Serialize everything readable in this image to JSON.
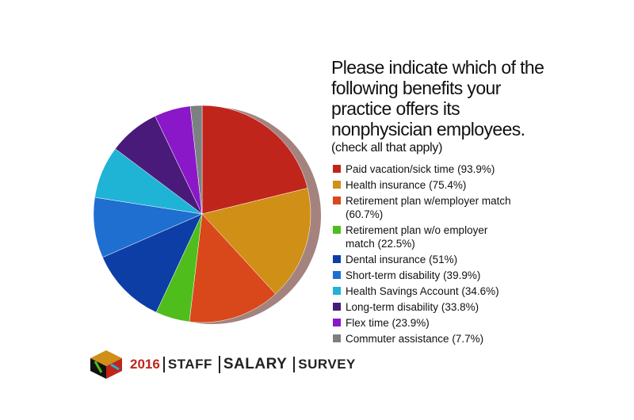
{
  "chart_data": {
    "type": "pie",
    "title": "Please indicate which of the following benefits your practice offers its nonphysician employees.",
    "subtitle": "(check all that apply)",
    "categories": [
      "Paid vacation/sick time",
      "Health insurance",
      "Retirement plan w/employer match",
      "Retirement plan w/o employer match",
      "Dental insurance",
      "Short-term disability",
      "Health Savings Account",
      "Long-term disability",
      "Flex time",
      "Commuter assistance"
    ],
    "values": [
      93.9,
      75.4,
      60.7,
      22.5,
      51,
      39.9,
      34.6,
      33.8,
      23.9,
      7.7
    ],
    "value_labels": [
      "(93.9%)",
      "(75.4%)",
      "(60.7%)",
      "(22.5%)",
      "(51%)",
      "(39.9%)",
      "(34.6%)",
      "(33.8%)",
      "(23.9%)",
      "(7.7%)"
    ],
    "colors": [
      "#c0251b",
      "#d08f16",
      "#d9481a",
      "#4fbe1c",
      "#0d3ea6",
      "#1f6fd1",
      "#1fb3d6",
      "#4a1a7a",
      "#8a18c8",
      "#7b8080"
    ]
  },
  "logo": {
    "year": "2016",
    "words": [
      "STAFF",
      "SALARY",
      "SURVEY"
    ]
  }
}
